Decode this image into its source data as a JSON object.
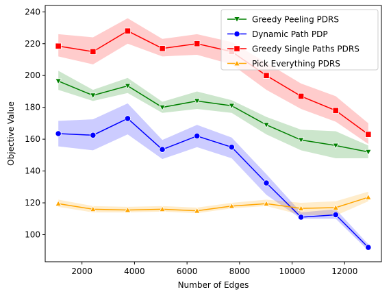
{
  "chart_data": {
    "type": "line",
    "title": "",
    "xlabel": "Number of Edges",
    "ylabel": "Objective Value",
    "xlim": [
      600,
      13400
    ],
    "ylim": [
      83,
      244
    ],
    "xticks": [
      2000,
      4000,
      6000,
      8000,
      10000,
      12000
    ],
    "yticks": [
      100,
      120,
      140,
      160,
      180,
      200,
      220,
      240
    ],
    "grid": false,
    "legend_position": "top-right",
    "x": [
      1100,
      2420,
      3740,
      5060,
      6380,
      7700,
      9020,
      10340,
      11660,
      12900
    ],
    "series": [
      {
        "name": "Greedy Peeling PDRS",
        "color": "#008000",
        "marker": "triangle-down",
        "values": [
          196.5,
          187.5,
          193.5,
          180,
          184,
          181,
          169,
          159.5,
          156,
          152
        ],
        "lower": [
          191,
          184,
          189,
          176.5,
          179,
          176.5,
          163,
          153,
          148,
          148
        ],
        "upper": [
          203,
          191,
          198.5,
          183.5,
          190,
          184.5,
          174,
          166,
          165,
          156
        ]
      },
      {
        "name": "Dynamic Path PDP",
        "color": "#0000ff",
        "marker": "circle",
        "values": [
          163.5,
          162.5,
          173,
          153.5,
          162,
          155,
          132.5,
          111,
          112.5,
          92
        ],
        "lower": [
          155.5,
          153,
          163,
          147.5,
          155,
          148,
          125,
          110,
          110,
          90
        ],
        "upper": [
          171.5,
          172.5,
          182.5,
          159.5,
          169,
          161,
          138,
          114,
          116,
          94
        ]
      },
      {
        "name": "Greedy Single Paths PDRS",
        "color": "#ff0000",
        "marker": "square",
        "values": [
          218.5,
          215,
          228,
          217,
          220,
          215,
          200,
          187,
          178,
          163
        ],
        "lower": [
          212,
          207,
          220,
          212,
          213,
          207,
          191,
          179,
          171,
          157
        ],
        "upper": [
          226,
          224,
          236,
          223,
          226,
          221,
          208,
          195,
          187,
          170
        ]
      },
      {
        "name": "Pick Everything PDRS",
        "color": "#ffa500",
        "marker": "triangle-up",
        "values": [
          119.5,
          116,
          115.5,
          116,
          115,
          118,
          119.5,
          116.5,
          117,
          123.5
        ],
        "lower": [
          117.5,
          114,
          114,
          114.5,
          113.5,
          116.5,
          118,
          112.5,
          112,
          121
        ],
        "upper": [
          122,
          118,
          117.5,
          118,
          117,
          120,
          122,
          120,
          121,
          127
        ]
      }
    ]
  }
}
